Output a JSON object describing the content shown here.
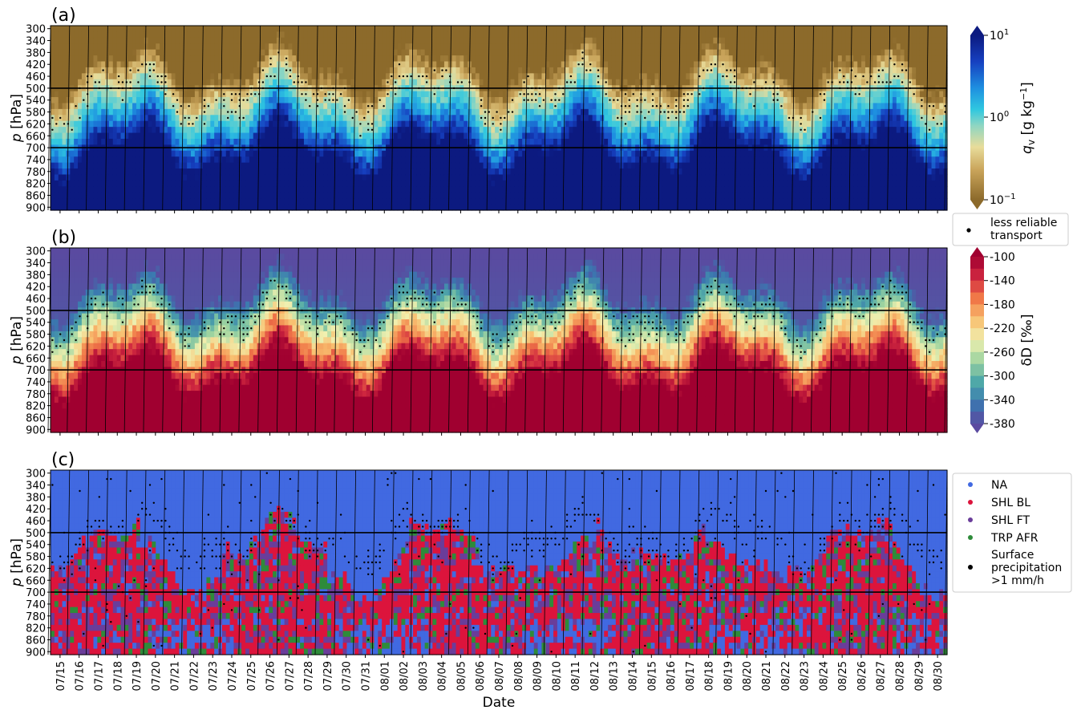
{
  "figure": {
    "xlabel": "Date",
    "ylabel_html": "p [hPa]",
    "dates": [
      "07/15",
      "07/16",
      "07/17",
      "07/18",
      "07/19",
      "07/20",
      "07/21",
      "07/22",
      "07/23",
      "07/24",
      "07/25",
      "07/26",
      "07/27",
      "07/28",
      "07/29",
      "07/30",
      "07/31",
      "08/01",
      "08/02",
      "08/03",
      "08/04",
      "08/05",
      "08/06",
      "08/07",
      "08/08",
      "08/09",
      "08/10",
      "08/11",
      "08/12",
      "08/13",
      "08/14",
      "08/15",
      "08/16",
      "08/17",
      "08/18",
      "08/19",
      "08/20",
      "08/21",
      "08/22",
      "08/23",
      "08/24",
      "08/25",
      "08/26",
      "08/27",
      "08/28",
      "08/29",
      "08/30"
    ],
    "pressure_ticks": [
      300,
      340,
      380,
      420,
      460,
      500,
      540,
      580,
      620,
      660,
      700,
      740,
      780,
      820,
      860,
      900
    ],
    "reference_lines_hPa": [
      500,
      700
    ]
  },
  "chart_data": [
    {
      "type": "heatmap",
      "panel_label": "(a)",
      "variable": "q_v",
      "colorbar_label": "qv [g kg−1]",
      "colorbar_scale": "log",
      "colorbar_ticks": [
        "10^1",
        "10^0",
        "10^-1"
      ],
      "colorbar_range": [
        0.1,
        10
      ],
      "colormap": [
        "#8c6a2b",
        "#c9a45a",
        "#e8dc9a",
        "#8fd6c2",
        "#2fc7e0",
        "#1e8fe0",
        "#1640c0",
        "#0c1a80"
      ],
      "dots_meaning": "less reliable transport",
      "y_axis": "pressure (hPa), 300 top to 900 bottom",
      "x_range": [
        "07/15",
        "08/30"
      ],
      "description_values": {
        "upper_levels_300_400": "dry, ~0.1-0.3 g/kg",
        "mid_levels_500_700": "~1-5 g/kg",
        "lower_levels_800_900": "~5-10 g/kg"
      }
    },
    {
      "type": "heatmap",
      "panel_label": "(b)",
      "variable": "deltaD",
      "colorbar_label": "δD [‰]",
      "colorbar_ticks": [
        -100,
        -140,
        -180,
        -220,
        -260,
        -300,
        -340,
        -380
      ],
      "colorbar_range": [
        -380,
        -100
      ],
      "colormap": [
        "#5a4aa0",
        "#3a78b0",
        "#4fa8a8",
        "#9fd4a0",
        "#f0f0b0",
        "#f8c070",
        "#f07848",
        "#d02840",
        "#a00030"
      ],
      "dots_meaning": "less reliable transport",
      "y_axis": "pressure (hPa), 300 top to 900 bottom",
      "x_range": [
        "07/15",
        "08/30"
      ]
    },
    {
      "type": "heatmap",
      "panel_label": "(c)",
      "variable": "air mass source category",
      "categories": [
        {
          "name": "NA",
          "color": "#4169e1"
        },
        {
          "name": "SHL BL",
          "color": "#dc143c"
        },
        {
          "name": "SHL FT",
          "color": "#6a3d9a"
        },
        {
          "name": "TRP AFR",
          "color": "#2e8b3a"
        }
      ],
      "dots_meaning": "Surface precipitation >1 mm/h",
      "y_axis": "pressure (hPa), 300 top to 900 bottom",
      "x_range": [
        "07/15",
        "08/30"
      ]
    }
  ],
  "legends": {
    "transport_dot_label_line1": "less reliable",
    "transport_dot_label_line2": "transport",
    "precip_label_line1": "Surface",
    "precip_label_line2": "precipitation",
    "precip_label_line3": ">1 mm/h"
  }
}
